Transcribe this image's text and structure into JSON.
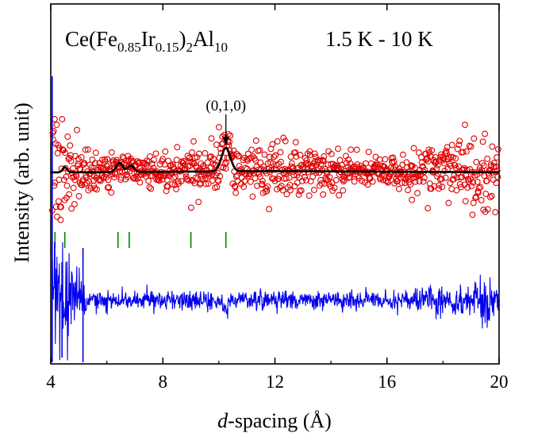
{
  "chart_data": {
    "type": "scatter",
    "x_axis": {
      "label_italic": "d",
      "label_rest": "-spacing (Å)",
      "range": [
        4,
        20
      ],
      "ticks": [
        4,
        8,
        12,
        16,
        20
      ]
    },
    "y_axis": {
      "label": "Intensity (arb. unit)",
      "ticks_shown": false
    },
    "title_compound": {
      "parts": [
        {
          "text": "Ce(Fe",
          "sub": false
        },
        {
          "text": "0.85",
          "sub": true
        },
        {
          "text": "Ir",
          "sub": false
        },
        {
          "text": "0.15",
          "sub": true
        },
        {
          "text": ")",
          "sub": false
        },
        {
          "text": "2",
          "sub": true
        },
        {
          "text": "Al",
          "sub": false
        },
        {
          "text": "10",
          "sub": true
        }
      ]
    },
    "temperature_label": "1.5 K - 10 K",
    "annotation": {
      "text": "(0,1,0)",
      "at_x": 10.25
    },
    "bragg_positions": [
      4.15,
      4.5,
      6.4,
      6.8,
      9.0,
      10.25
    ],
    "fit_peaks": [
      {
        "x": 4.5,
        "height": 0.18,
        "width": 0.05
      },
      {
        "x": 6.45,
        "height": 0.32,
        "width": 0.07
      },
      {
        "x": 6.85,
        "height": 0.22,
        "width": 0.07
      },
      {
        "x": 10.25,
        "height": 0.82,
        "width": 0.1
      }
    ],
    "fit_baseline": {
      "start": 0.0,
      "mid": 0.15,
      "end": 0.02
    },
    "series": [
      {
        "role": "observed",
        "color": "#e00000",
        "marker": "open-circle"
      },
      {
        "role": "calculated",
        "color": "#000000",
        "marker": "line"
      },
      {
        "role": "difference",
        "color": "#0000ee",
        "marker": "line"
      },
      {
        "role": "bragg-ticks",
        "color": "#008000",
        "marker": "vertical-tick"
      }
    ]
  }
}
